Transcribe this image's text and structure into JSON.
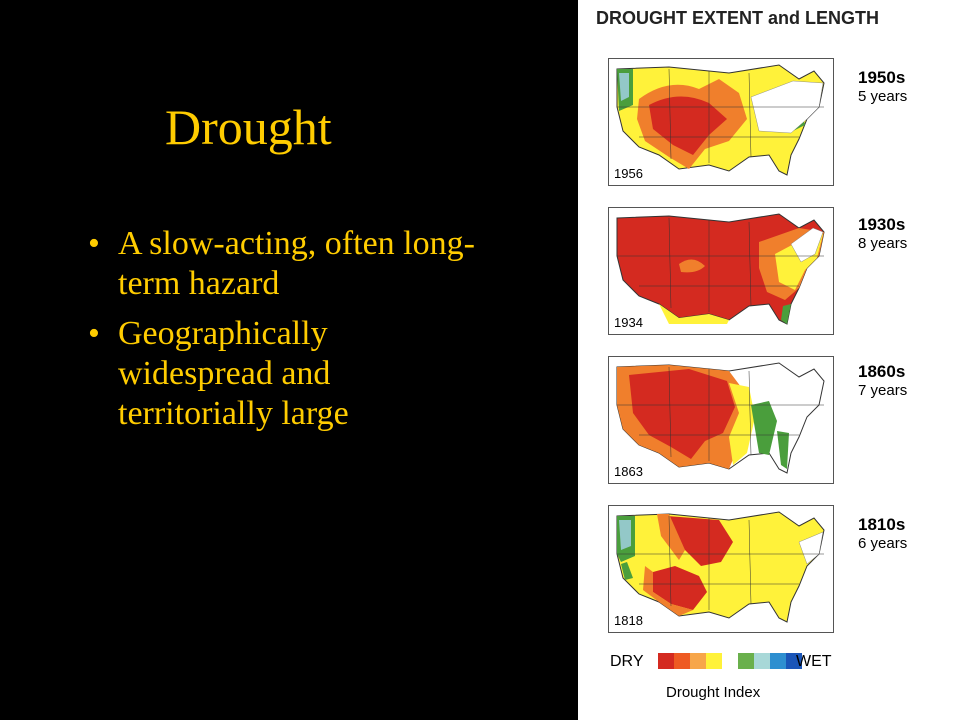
{
  "slide": {
    "title": "Drought",
    "bullet_char": "•",
    "bullets": [
      "A slow-acting, often long-term hazard",
      "Geographically widespread and territorially large"
    ]
  },
  "figure": {
    "title": "DROUGHT EXTENT and LENGTH",
    "panels": [
      {
        "year": "1956",
        "decade": "1950s",
        "duration": "5 years"
      },
      {
        "year": "1934",
        "decade": "1930s",
        "duration": "8 years"
      },
      {
        "year": "1863",
        "decade": "1860s",
        "duration": "7 years"
      },
      {
        "year": "1818",
        "decade": "1810s",
        "duration": "6 years"
      }
    ],
    "legend": {
      "dry_label": "DRY",
      "wet_label": "WET",
      "index_label": "Drought Index",
      "colors": [
        "#d42a20",
        "#ee5a22",
        "#f7a64a",
        "#fff23a",
        "#ffffff",
        "#6ab04c",
        "#a8d8d8",
        "#2e8fd0",
        "#1a55b8"
      ]
    },
    "colors": {
      "severe_dry": "#d42a20",
      "dry": "#f07f2c",
      "moderate_dry": "#fff23a",
      "wet": "#4a9e3c",
      "very_wet": "#93c8c8"
    }
  }
}
